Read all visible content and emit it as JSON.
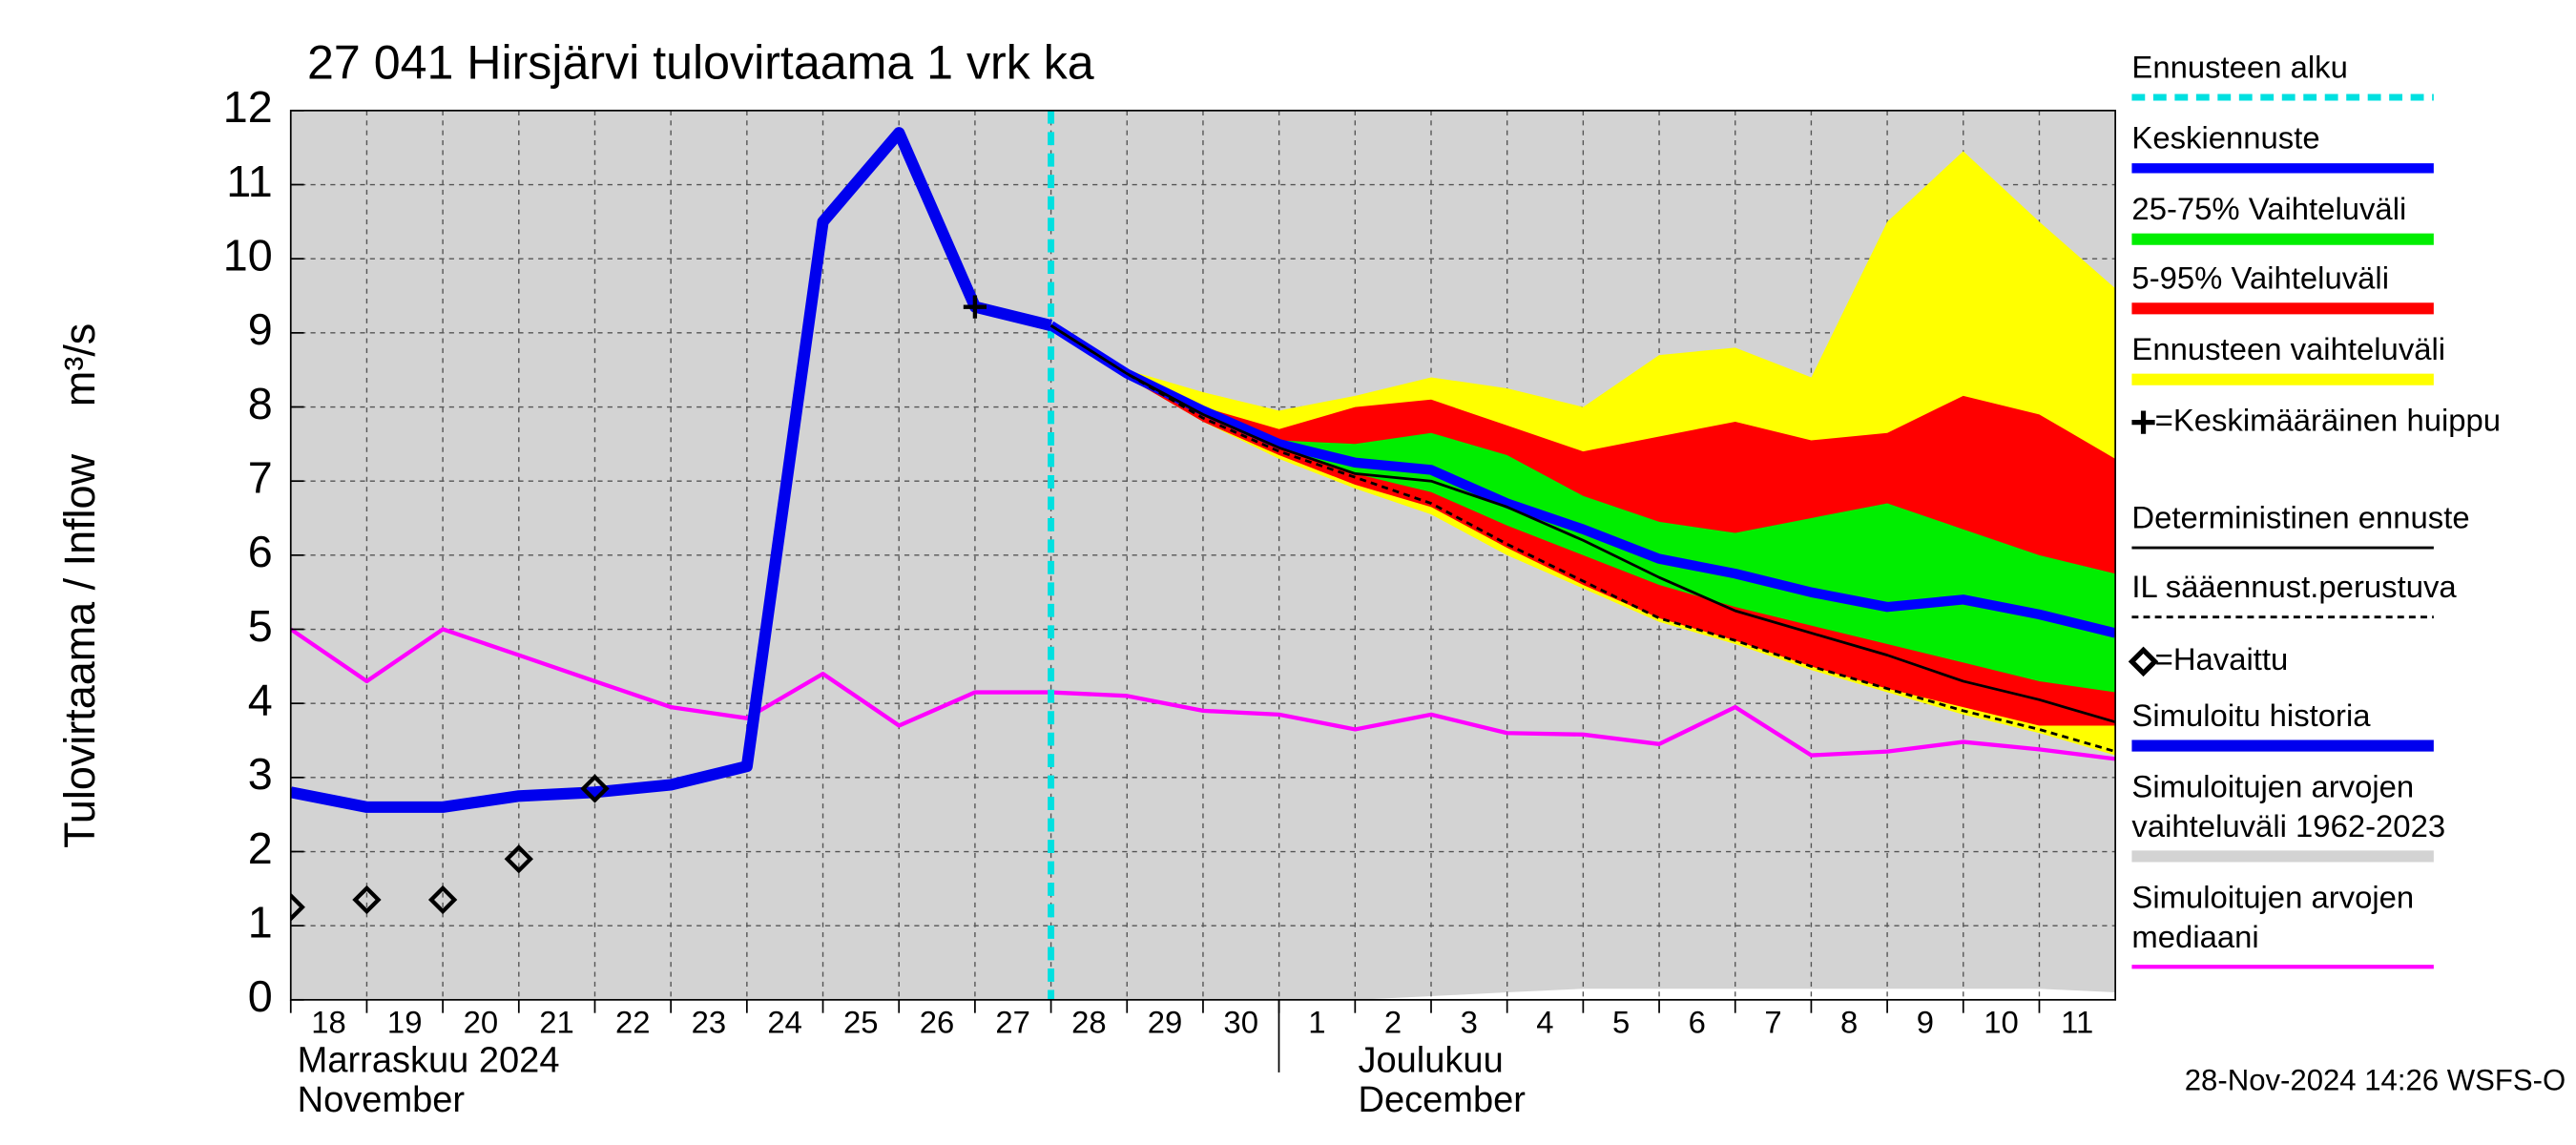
{
  "chart_data": {
    "type": "hydrograph",
    "title": "27 041 Hirsjärvi tulovirtaama 1 vrk ka",
    "ylabel": "Tulovirtaama / Inflow    m³/s",
    "xlim": [
      0,
      24
    ],
    "ylim": [
      0,
      12
    ],
    "yticks": [
      0,
      1,
      2,
      3,
      4,
      5,
      6,
      7,
      8,
      9,
      10,
      11,
      12
    ],
    "xticks": [
      {
        "value": 0,
        "label": "18"
      },
      {
        "value": 1,
        "label": "19"
      },
      {
        "value": 2,
        "label": "20"
      },
      {
        "value": 3,
        "label": "21"
      },
      {
        "value": 4,
        "label": "22"
      },
      {
        "value": 5,
        "label": "23"
      },
      {
        "value": 6,
        "label": "24"
      },
      {
        "value": 7,
        "label": "25"
      },
      {
        "value": 8,
        "label": "26"
      },
      {
        "value": 9,
        "label": "27"
      },
      {
        "value": 10,
        "label": "28"
      },
      {
        "value": 11,
        "label": "29"
      },
      {
        "value": 12,
        "label": "30"
      },
      {
        "value": 13,
        "label": "1"
      },
      {
        "value": 14,
        "label": "2"
      },
      {
        "value": 15,
        "label": "3"
      },
      {
        "value": 16,
        "label": "4"
      },
      {
        "value": 17,
        "label": "5"
      },
      {
        "value": 18,
        "label": "6"
      },
      {
        "value": 19,
        "label": "7"
      },
      {
        "value": 20,
        "label": "8"
      },
      {
        "value": 21,
        "label": "9"
      },
      {
        "value": 22,
        "label": "10"
      },
      {
        "value": 23,
        "label": "11"
      }
    ],
    "grid": true,
    "months": [
      [
        "Marraskuu 2024",
        "November"
      ],
      [
        "Joulukuu",
        "December"
      ]
    ],
    "timestamp": "28-Nov-2024 14:26 WSFS-O",
    "layers": [
      {
        "name": "Ennusteen alku",
        "kind": "vline",
        "color": "#00e0e0",
        "x": 10,
        "width": 4,
        "dash": true
      },
      {
        "name": "Keskiennuste",
        "kind": "line",
        "color": "#0000ff",
        "width": 6,
        "x": [
          10,
          11,
          12,
          13,
          14,
          15,
          16,
          17,
          18,
          19,
          20,
          21,
          22,
          23,
          24
        ],
        "values": [
          9.1,
          8.45,
          7.95,
          7.5,
          7.25,
          7.15,
          6.7,
          6.35,
          5.95,
          5.75,
          5.5,
          5.3,
          5.4,
          5.2,
          4.95
        ]
      },
      {
        "name": "25-75% Vaihteluväli",
        "kind": "band",
        "color": "#00ee00",
        "x": [
          10,
          11,
          12,
          13,
          14,
          15,
          16,
          17,
          18,
          19,
          20,
          21,
          22,
          23,
          24
        ],
        "upper": [
          9.1,
          8.45,
          7.95,
          7.55,
          7.5,
          7.65,
          7.35,
          6.8,
          6.45,
          6.3,
          6.5,
          6.7,
          6.35,
          6.0,
          5.75
        ],
        "lower": [
          9.1,
          8.45,
          7.9,
          7.45,
          7.1,
          6.85,
          6.4,
          6.0,
          5.6,
          5.3,
          5.05,
          4.8,
          4.55,
          4.3,
          4.15
        ]
      },
      {
        "name": "5-95% Vaihteluväli",
        "kind": "band",
        "color": "#ff0000",
        "x": [
          10,
          11,
          12,
          13,
          14,
          15,
          16,
          17,
          18,
          19,
          20,
          21,
          22,
          23,
          24
        ],
        "upper": [
          9.1,
          8.45,
          8.0,
          7.7,
          8.0,
          8.1,
          7.75,
          7.4,
          7.6,
          7.8,
          7.55,
          7.65,
          8.15,
          7.9,
          7.3
        ],
        "lower": [
          9.1,
          8.4,
          7.8,
          7.35,
          6.95,
          6.65,
          6.1,
          5.6,
          5.15,
          4.85,
          4.5,
          4.2,
          3.95,
          3.7,
          3.7
        ]
      },
      {
        "name": "Ennusteen vaihteluväli",
        "kind": "band",
        "color": "#ffff00",
        "x": [
          10,
          11,
          12,
          13,
          14,
          15,
          16,
          17,
          18,
          19,
          20,
          21,
          22,
          23,
          24
        ],
        "upper": [
          9.1,
          8.5,
          8.2,
          7.95,
          8.15,
          8.4,
          8.25,
          8.0,
          8.7,
          8.8,
          8.4,
          10.5,
          11.45,
          10.5,
          9.6
        ],
        "lower": [
          9.1,
          8.4,
          7.8,
          7.3,
          6.9,
          6.55,
          6.0,
          5.55,
          5.1,
          4.8,
          4.45,
          4.15,
          3.85,
          3.6,
          3.3
        ]
      },
      {
        "name": "=Keskimääräinen huippu",
        "kind": "marker",
        "marker": "cross",
        "color": "#000000",
        "x": [
          9
        ],
        "values": [
          9.35
        ]
      },
      {
        "name": "Deterministinen ennuste",
        "kind": "line",
        "color": "#000000",
        "width": 1.6,
        "x": [
          10,
          11,
          12,
          13,
          14,
          15,
          16,
          17,
          18,
          19,
          20,
          21,
          22,
          23,
          24
        ],
        "values": [
          9.1,
          8.45,
          7.9,
          7.45,
          7.1,
          7.0,
          6.65,
          6.2,
          5.7,
          5.25,
          4.95,
          4.65,
          4.3,
          4.05,
          3.75
        ]
      },
      {
        "name": "IL sääennust.perustuva",
        "kind": "line",
        "color": "#000000",
        "width": 1.6,
        "dash": true,
        "x": [
          10,
          11,
          12,
          13,
          14,
          15,
          16,
          17,
          18,
          19,
          20,
          21,
          22,
          23,
          24
        ],
        "values": [
          9.1,
          8.45,
          7.85,
          7.4,
          7.05,
          6.7,
          6.15,
          5.65,
          5.15,
          4.85,
          4.5,
          4.2,
          3.9,
          3.65,
          3.35
        ]
      },
      {
        "name": "=Havaittu",
        "kind": "marker",
        "marker": "diamond",
        "color": "#000000",
        "x": [
          0,
          1,
          2,
          3,
          4
        ],
        "values": [
          1.25,
          1.35,
          1.35,
          1.9,
          2.85
        ]
      },
      {
        "name": "Simuloitu historia",
        "kind": "line",
        "color": "#0000ee",
        "width": 7,
        "x": [
          0,
          1,
          2,
          3,
          4,
          5,
          6,
          7,
          8,
          9,
          10
        ],
        "values": [
          2.8,
          2.6,
          2.6,
          2.75,
          2.8,
          2.9,
          3.15,
          10.5,
          11.7,
          9.35,
          9.1
        ]
      },
      {
        "name": "Simuloitujen arvojen vaihteluväli 1962-2023",
        "kind": "band",
        "color": "#d3d3d3",
        "x": [
          0,
          1,
          2,
          3,
          4,
          5,
          6,
          7,
          8,
          9,
          10,
          11,
          12,
          13,
          14,
          15,
          16,
          17,
          18,
          19,
          20,
          21,
          22,
          23,
          24
        ],
        "upper": [
          12,
          12,
          12,
          12,
          12,
          12,
          12,
          12,
          12,
          12,
          12,
          12,
          12,
          12,
          12,
          12,
          12,
          12,
          12,
          12,
          12,
          12,
          12,
          12,
          12
        ],
        "lower": [
          0,
          0,
          0,
          0,
          0,
          0,
          0,
          0,
          0,
          0,
          0,
          0,
          0,
          0,
          0,
          0.05,
          0.1,
          0.15,
          0.15,
          0.15,
          0.15,
          0.15,
          0.15,
          0.15,
          0.1
        ]
      },
      {
        "name": "Simuloitujen arvojen mediaani",
        "kind": "line",
        "color": "#ff00ff",
        "width": 2.5,
        "x": [
          0,
          1,
          2,
          3,
          4,
          5,
          6,
          7,
          8,
          9,
          10,
          11,
          12,
          13,
          14,
          15,
          16,
          17,
          18,
          19,
          20,
          21,
          22,
          23,
          24
        ],
        "values": [
          5.0,
          4.3,
          5.0,
          4.65,
          4.3,
          3.95,
          3.8,
          4.4,
          3.7,
          4.15,
          4.15,
          4.1,
          3.9,
          3.85,
          3.65,
          3.85,
          3.6,
          3.58,
          3.45,
          3.95,
          3.3,
          3.35,
          3.48,
          3.38,
          3.25
        ]
      }
    ]
  }
}
